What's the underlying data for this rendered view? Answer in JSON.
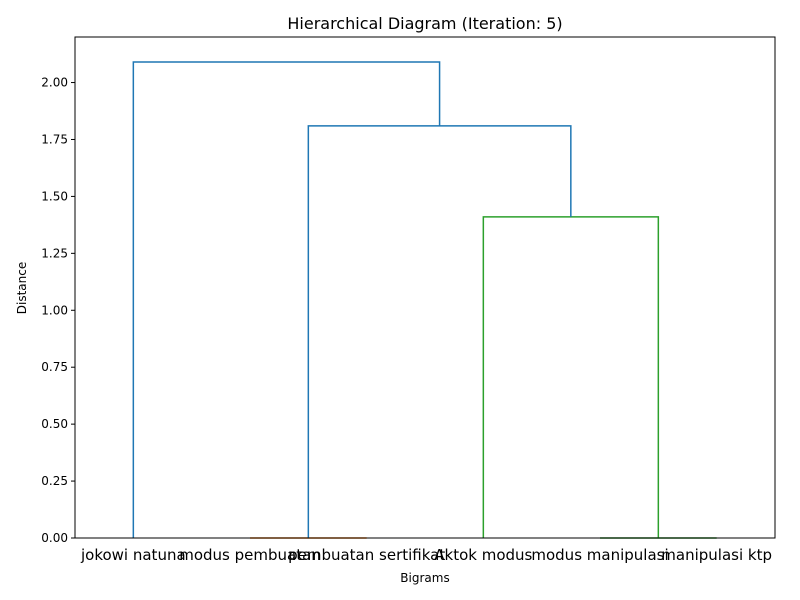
{
  "chart_data": {
    "type": "dendrogram",
    "title": "Hierarchical Diagram (Iteration: 5)",
    "xlabel": "Bigrams",
    "ylabel": "Distance",
    "ylim": [
      0,
      2.2
    ],
    "yticks": [
      "0.00",
      "0.25",
      "0.50",
      "0.75",
      "1.00",
      "1.25",
      "1.50",
      "1.75",
      "2.00"
    ],
    "leaves": [
      "jokowi natuna",
      "modus pembuatan",
      "pembuatan sertifikat",
      "Aktok modus",
      "modus manipulasi",
      "manipulasi ktp"
    ],
    "merges": [
      {
        "left": "modus pembuatan",
        "right": "pembuatan sertifikat",
        "distance": 0.0,
        "color": "#ff7f0e"
      },
      {
        "left": "modus manipulasi",
        "right": "manipulasi ktp",
        "distance": 0.0,
        "color": "#2ca02c"
      },
      {
        "left": "Aktok modus",
        "right": "{modus manipulasi, manipulasi ktp}",
        "distance": 1.41,
        "color": "#2ca02c"
      },
      {
        "left": "{modus pembuatan, pembuatan sertifikat}",
        "right": "{Aktok modus, modus manipulasi, manipulasi ktp}",
        "distance": 1.81,
        "color": "#1f77b4"
      },
      {
        "left": "jokowi natuna",
        "right": "{all others}",
        "distance": 2.09,
        "color": "#1f77b4"
      }
    ]
  }
}
